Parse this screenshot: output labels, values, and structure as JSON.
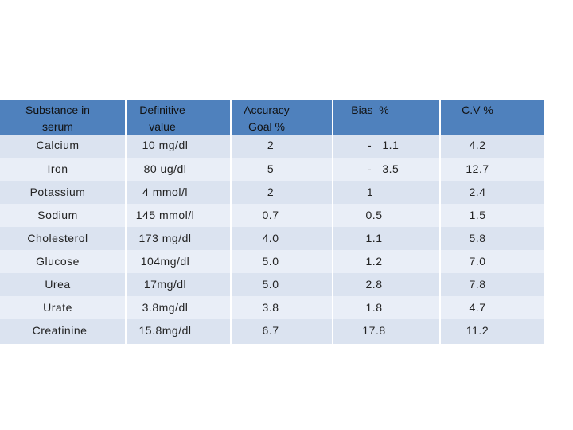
{
  "table": {
    "headers": [
      {
        "line1": "Substance in",
        "line2": "serum"
      },
      {
        "line1": "Definitive",
        "line2": "value"
      },
      {
        "line1": "Accuracy",
        "line2": "Goal %"
      },
      {
        "line1": "Bias  %",
        "line2": ""
      },
      {
        "line1": "C.V %",
        "line2": ""
      }
    ],
    "rows": [
      {
        "substance": "Calcium",
        "value": "10 mg/dl",
        "goal": "2",
        "bias": "-   1.1",
        "cv": "4.2"
      },
      {
        "substance": "Iron",
        "value": "80 ug/dl",
        "goal": "5",
        "bias": "-   3.5",
        "cv": "12.7"
      },
      {
        "substance": "Potassium",
        "value": "4 mmol/l",
        "goal": "2",
        "bias": "1",
        "cv": "2.4"
      },
      {
        "substance": "Sodium",
        "value": "145 mmol/l",
        "goal": "0.7",
        "bias": "0.5",
        "cv": "1.5"
      },
      {
        "substance": "Cholesterol",
        "value": "173 mg/dl",
        "goal": "4.0",
        "bias": "1.1",
        "cv": "5.8"
      },
      {
        "substance": "Glucose",
        "value": "104mg/dl",
        "goal": "5.0",
        "bias": "1.2",
        "cv": "7.0"
      },
      {
        "substance": "Urea",
        "value": "17mg/dl",
        "goal": "5.0",
        "bias": "2.8",
        "cv": "7.8"
      },
      {
        "substance": "Urate",
        "value": "3.8mg/dl",
        "goal": "3.8",
        "bias": "1.8",
        "cv": "4.7"
      },
      {
        "substance": "Creatinine",
        "value": "15.8mg/dl",
        "goal": "6.7",
        "bias": "17.8",
        "cv": "11.2"
      }
    ]
  }
}
